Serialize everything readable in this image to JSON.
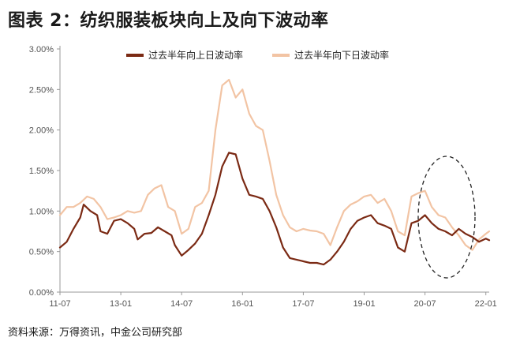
{
  "figure_title": "图表 2：纺织服装板块向上及向下波动率",
  "source_note": "资料来源：万得资讯，中金公司研究部",
  "chart_data": {
    "type": "line",
    "title": "",
    "xlabel": "",
    "ylabel": "",
    "x_tick_labels": [
      "11-07",
      "13-01",
      "14-07",
      "16-01",
      "17-07",
      "19-01",
      "20-07",
      "22-01"
    ],
    "y_tick_labels": [
      "0.00%",
      "0.50%",
      "1.00%",
      "1.50%",
      "2.00%",
      "2.50%",
      "3.00%"
    ],
    "ylim": [
      0,
      3.0
    ],
    "y_unit": "%",
    "x_period_months": [
      "2011-07",
      "2022-02"
    ],
    "grid": false,
    "legend_position": "top",
    "annotation": "dashed ellipse highlighting 2020-07 to 2022-01",
    "series": [
      {
        "name": "过去半年向上日波动率",
        "color": "#7b2a14",
        "points": [
          [
            "2011-07",
            0.55
          ],
          [
            "2011-09",
            0.62
          ],
          [
            "2011-11",
            0.78
          ],
          [
            "2012-01",
            0.92
          ],
          [
            "2012-02",
            1.08
          ],
          [
            "2012-04",
            1.0
          ],
          [
            "2012-06",
            0.95
          ],
          [
            "2012-07",
            0.75
          ],
          [
            "2012-09",
            0.72
          ],
          [
            "2012-11",
            0.88
          ],
          [
            "2013-01",
            0.9
          ],
          [
            "2013-03",
            0.85
          ],
          [
            "2013-05",
            0.78
          ],
          [
            "2013-06",
            0.65
          ],
          [
            "2013-08",
            0.72
          ],
          [
            "2013-10",
            0.73
          ],
          [
            "2013-12",
            0.8
          ],
          [
            "2014-02",
            0.75
          ],
          [
            "2014-04",
            0.7
          ],
          [
            "2014-05",
            0.58
          ],
          [
            "2014-07",
            0.45
          ],
          [
            "2014-09",
            0.52
          ],
          [
            "2014-11",
            0.6
          ],
          [
            "2015-01",
            0.72
          ],
          [
            "2015-03",
            0.95
          ],
          [
            "2015-05",
            1.2
          ],
          [
            "2015-07",
            1.55
          ],
          [
            "2015-09",
            1.72
          ],
          [
            "2015-11",
            1.7
          ],
          [
            "2016-01",
            1.4
          ],
          [
            "2016-03",
            1.2
          ],
          [
            "2016-05",
            1.18
          ],
          [
            "2016-07",
            1.15
          ],
          [
            "2016-09",
            1.0
          ],
          [
            "2016-11",
            0.8
          ],
          [
            "2017-01",
            0.55
          ],
          [
            "2017-03",
            0.42
          ],
          [
            "2017-05",
            0.4
          ],
          [
            "2017-07",
            0.38
          ],
          [
            "2017-09",
            0.36
          ],
          [
            "2017-11",
            0.36
          ],
          [
            "2018-01",
            0.34
          ],
          [
            "2018-03",
            0.4
          ],
          [
            "2018-05",
            0.5
          ],
          [
            "2018-07",
            0.62
          ],
          [
            "2018-09",
            0.78
          ],
          [
            "2018-11",
            0.88
          ],
          [
            "2019-01",
            0.92
          ],
          [
            "2019-03",
            0.95
          ],
          [
            "2019-05",
            0.85
          ],
          [
            "2019-07",
            0.82
          ],
          [
            "2019-09",
            0.78
          ],
          [
            "2019-11",
            0.55
          ],
          [
            "2020-01",
            0.5
          ],
          [
            "2020-03",
            0.85
          ],
          [
            "2020-05",
            0.88
          ],
          [
            "2020-07",
            0.95
          ],
          [
            "2020-09",
            0.85
          ],
          [
            "2020-11",
            0.78
          ],
          [
            "2021-01",
            0.75
          ],
          [
            "2021-03",
            0.7
          ],
          [
            "2021-05",
            0.78
          ],
          [
            "2021-07",
            0.72
          ],
          [
            "2021-09",
            0.68
          ],
          [
            "2021-11",
            0.62
          ],
          [
            "2022-01",
            0.66
          ],
          [
            "2022-02",
            0.64
          ]
        ]
      },
      {
        "name": "过去半年向下日波动率",
        "color": "#f2c4a4",
        "points": [
          [
            "2011-07",
            0.95
          ],
          [
            "2011-09",
            1.05
          ],
          [
            "2011-11",
            1.05
          ],
          [
            "2012-01",
            1.1
          ],
          [
            "2012-03",
            1.18
          ],
          [
            "2012-05",
            1.15
          ],
          [
            "2012-07",
            1.05
          ],
          [
            "2012-09",
            0.9
          ],
          [
            "2012-11",
            0.92
          ],
          [
            "2013-01",
            0.95
          ],
          [
            "2013-03",
            1.0
          ],
          [
            "2013-05",
            0.98
          ],
          [
            "2013-07",
            1.0
          ],
          [
            "2013-09",
            1.2
          ],
          [
            "2013-11",
            1.28
          ],
          [
            "2014-01",
            1.32
          ],
          [
            "2014-03",
            1.05
          ],
          [
            "2014-05",
            1.0
          ],
          [
            "2014-07",
            0.72
          ],
          [
            "2014-09",
            0.78
          ],
          [
            "2014-11",
            1.05
          ],
          [
            "2015-01",
            1.1
          ],
          [
            "2015-03",
            1.25
          ],
          [
            "2015-05",
            2.0
          ],
          [
            "2015-07",
            2.55
          ],
          [
            "2015-09",
            2.62
          ],
          [
            "2015-11",
            2.4
          ],
          [
            "2016-01",
            2.5
          ],
          [
            "2016-03",
            2.2
          ],
          [
            "2016-05",
            2.05
          ],
          [
            "2016-07",
            2.0
          ],
          [
            "2016-09",
            1.62
          ],
          [
            "2016-11",
            1.2
          ],
          [
            "2017-01",
            0.95
          ],
          [
            "2017-03",
            0.8
          ],
          [
            "2017-05",
            0.75
          ],
          [
            "2017-07",
            0.78
          ],
          [
            "2017-09",
            0.76
          ],
          [
            "2017-11",
            0.75
          ],
          [
            "2018-01",
            0.72
          ],
          [
            "2018-03",
            0.58
          ],
          [
            "2018-05",
            0.8
          ],
          [
            "2018-07",
            1.0
          ],
          [
            "2018-09",
            1.08
          ],
          [
            "2018-11",
            1.12
          ],
          [
            "2019-01",
            1.18
          ],
          [
            "2019-03",
            1.2
          ],
          [
            "2019-05",
            1.1
          ],
          [
            "2019-07",
            1.15
          ],
          [
            "2019-09",
            1.0
          ],
          [
            "2019-11",
            0.75
          ],
          [
            "2020-01",
            0.7
          ],
          [
            "2020-03",
            1.18
          ],
          [
            "2020-05",
            1.22
          ],
          [
            "2020-07",
            1.25
          ],
          [
            "2020-09",
            1.05
          ],
          [
            "2020-11",
            0.95
          ],
          [
            "2021-01",
            0.92
          ],
          [
            "2021-03",
            0.8
          ],
          [
            "2021-05",
            0.7
          ],
          [
            "2021-07",
            0.58
          ],
          [
            "2021-09",
            0.52
          ],
          [
            "2021-11",
            0.65
          ],
          [
            "2022-01",
            0.72
          ],
          [
            "2022-02",
            0.75
          ]
        ]
      }
    ]
  }
}
